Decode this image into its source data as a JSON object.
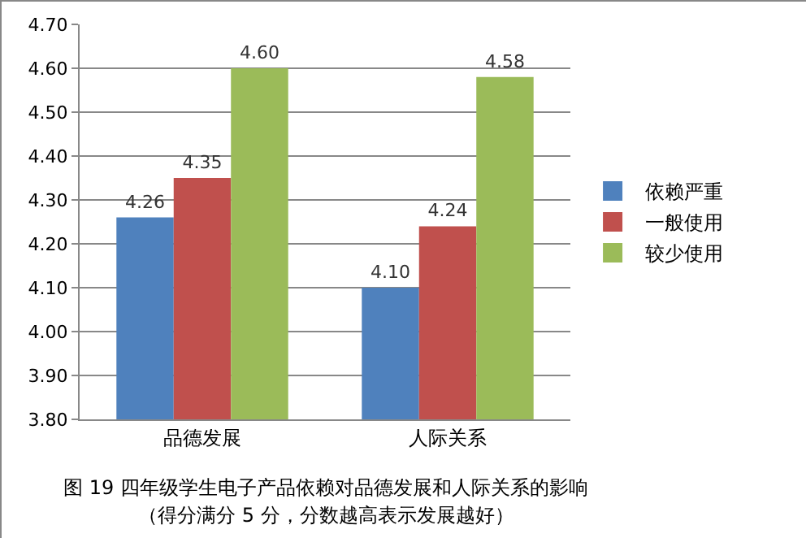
{
  "chart_data": {
    "type": "bar",
    "categories": [
      "品德发展",
      "人际关系"
    ],
    "series": [
      {
        "name": "依赖严重",
        "color": "#4f81bd",
        "values": [
          4.26,
          4.1
        ],
        "value_labels": [
          "4.26",
          "4.10"
        ]
      },
      {
        "name": "一般使用",
        "color": "#c0504d",
        "values": [
          4.35,
          4.24
        ],
        "value_labels": [
          "4.35",
          "4.24"
        ]
      },
      {
        "name": "较少使用",
        "color": "#9bbb59",
        "values": [
          4.6,
          4.58
        ],
        "value_labels": [
          "4.60",
          "4.58"
        ]
      }
    ],
    "ylim": [
      3.8,
      4.7
    ],
    "yticks": [
      {
        "value": 3.8,
        "label": "3.80"
      },
      {
        "value": 3.9,
        "label": "3.90"
      },
      {
        "value": 4.0,
        "label": "4.00"
      },
      {
        "value": 4.1,
        "label": "4.10"
      },
      {
        "value": 4.2,
        "label": "4.20"
      },
      {
        "value": 4.3,
        "label": "4.30"
      },
      {
        "value": 4.4,
        "label": "4.40"
      },
      {
        "value": 4.5,
        "label": "4.50"
      },
      {
        "value": 4.6,
        "label": "4.60"
      },
      {
        "value": 4.7,
        "label": "4.70"
      }
    ],
    "grid": "y",
    "legend": "right",
    "annotations": [
      "图 19 四年级学生电子产品依赖对品德发展和人际关系的影响",
      "（得分满分 5 分，分数越高表示发展越好）"
    ]
  }
}
